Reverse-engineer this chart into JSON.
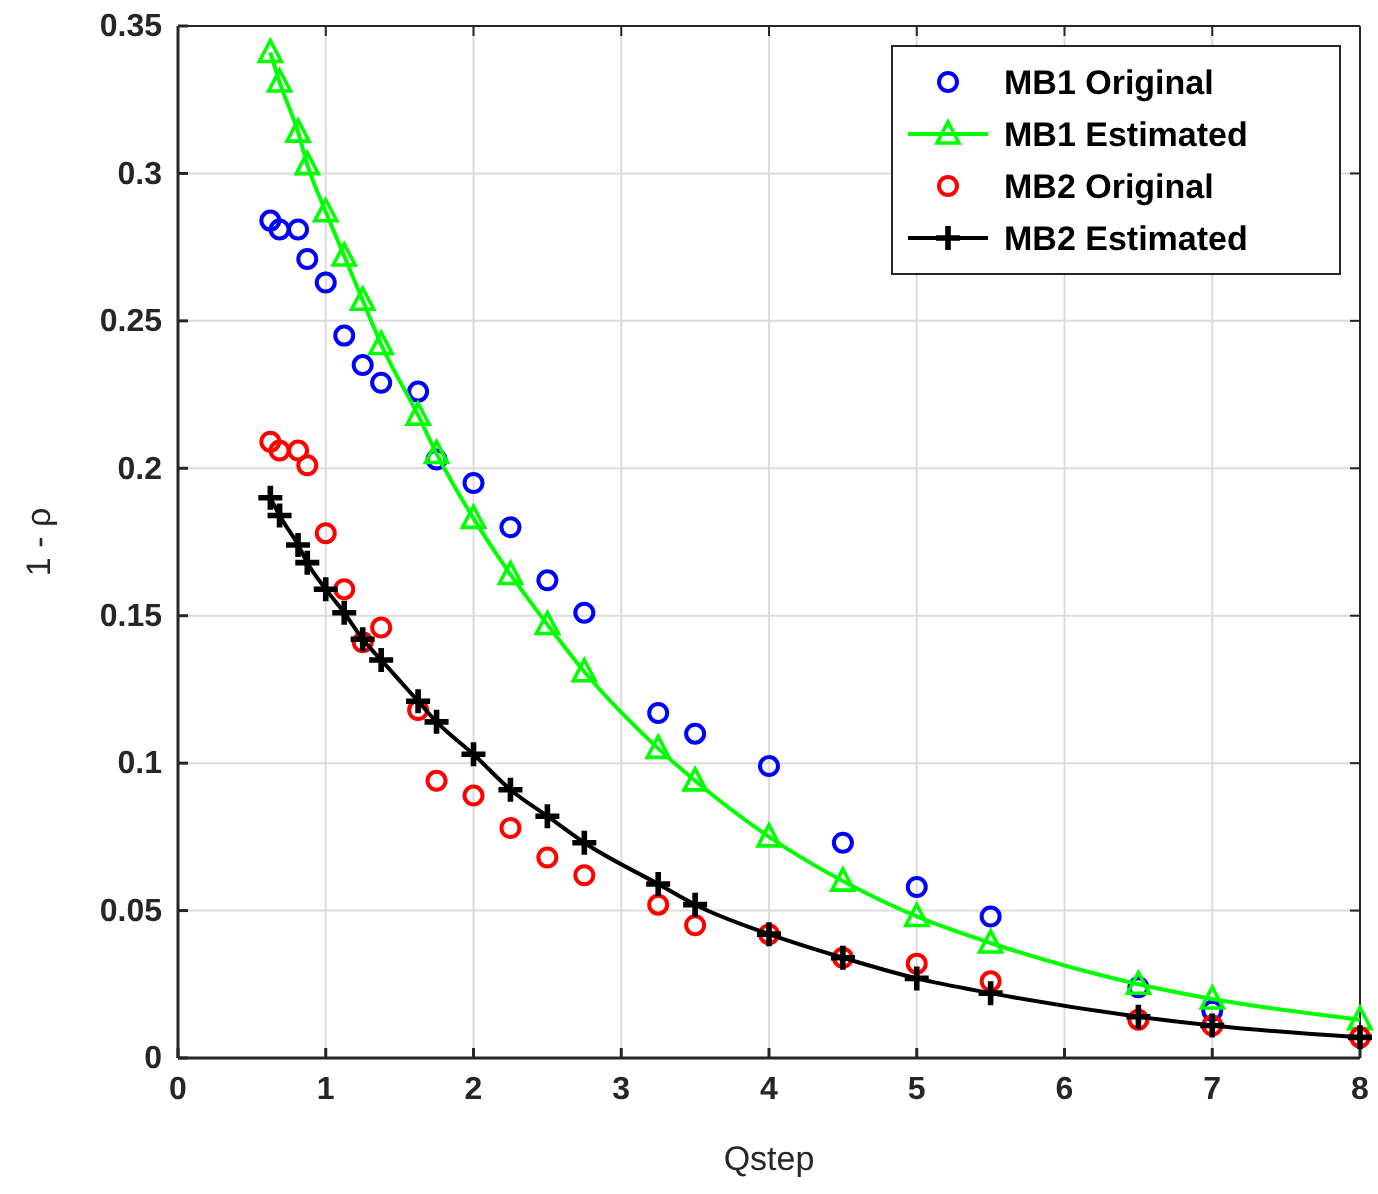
{
  "chart_data": {
    "type": "line",
    "xlabel": "Qstep",
    "ylabel": "1 - ρ",
    "x": [
      0.625,
      0.6875,
      0.8125,
      0.875,
      1,
      1.125,
      1.25,
      1.375,
      1.625,
      1.75,
      2,
      2.25,
      2.5,
      2.75,
      3.25,
      3.5,
      4,
      4.5,
      5,
      5.5,
      6.5,
      7,
      8
    ],
    "series": [
      {
        "name": "MB1 Original",
        "type": "scatter",
        "marker": "circle",
        "color": "#0000ff",
        "values": [
          0.284,
          0.281,
          0.281,
          0.271,
          0.263,
          0.245,
          0.235,
          0.229,
          0.226,
          0.203,
          0.195,
          0.18,
          0.162,
          0.151,
          0.117,
          0.11,
          0.099,
          0.073,
          0.058,
          0.048,
          0.024,
          0.016,
          null
        ]
      },
      {
        "name": "MB1 Estimated",
        "marker": "triangle",
        "color": "#00ff00",
        "values": [
          0.341,
          0.331,
          0.314,
          0.303,
          0.287,
          0.272,
          0.257,
          0.242,
          0.218,
          0.205,
          0.183,
          0.164,
          0.147,
          0.131,
          0.105,
          0.094,
          0.075,
          0.06,
          0.048,
          0.039,
          0.025,
          0.02,
          0.013
        ]
      },
      {
        "name": "MB2 Original",
        "type": "scatter",
        "marker": "circle",
        "color": "#ff0000",
        "values": [
          0.209,
          0.206,
          0.206,
          0.201,
          0.178,
          0.159,
          0.141,
          0.146,
          0.118,
          0.094,
          0.089,
          0.078,
          0.068,
          0.062,
          0.052,
          0.045,
          0.042,
          0.034,
          0.032,
          0.026,
          0.013,
          0.011,
          0.007
        ]
      },
      {
        "name": "MB2 Estimated",
        "marker": "cross",
        "color": "#000000",
        "values": [
          0.19,
          0.184,
          0.174,
          0.168,
          0.159,
          0.151,
          0.142,
          0.135,
          0.121,
          0.114,
          0.103,
          0.091,
          0.082,
          0.073,
          0.059,
          0.052,
          0.042,
          0.034,
          0.027,
          0.022,
          0.014,
          0.011,
          0.007
        ]
      }
    ],
    "xlim": [
      0,
      8
    ],
    "xticks": [
      0,
      1,
      2,
      3,
      4,
      5,
      6,
      7,
      8
    ],
    "ylim": [
      0,
      0.35
    ],
    "yticks": [
      0,
      0.05,
      0.1,
      0.15,
      0.2,
      0.25,
      0.3,
      0.35
    ],
    "grid": true,
    "legend": "top right",
    "line_style": "solid"
  }
}
